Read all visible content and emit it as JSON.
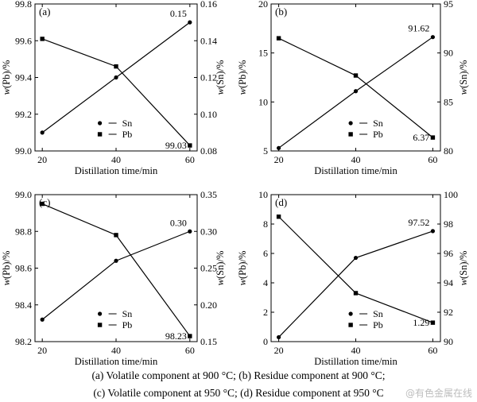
{
  "chart_data": [
    {
      "type": "line",
      "panel_label": "(a)",
      "x": [
        20,
        40,
        60
      ],
      "xticks": [
        "20",
        "40",
        "60"
      ],
      "xlabel": "Distillation time/min",
      "ylabel_left": "w(Pb)/%",
      "ylabel_right": "w(Sn)/%",
      "ylim_left": [
        99.0,
        99.8
      ],
      "yticks_left": [
        "99.0",
        "99.2",
        "99.4",
        "99.6",
        "99.8"
      ],
      "ylim_right": [
        0.08,
        0.16
      ],
      "yticks_right": [
        "0.08",
        "0.10",
        "0.12",
        "0.14",
        "0.16"
      ],
      "series": [
        {
          "name": "Sn",
          "axis": "right",
          "marker": "circle",
          "values": [
            0.09,
            0.12,
            0.15
          ]
        },
        {
          "name": "Pb",
          "axis": "left",
          "marker": "square",
          "values": [
            99.61,
            99.46,
            99.03
          ]
        }
      ],
      "annotations": [
        {
          "text": "0.15",
          "series": "Sn",
          "point": 2
        },
        {
          "text": "99.03",
          "series": "Pb",
          "point": 2
        }
      ],
      "legend": "bottom-left"
    },
    {
      "type": "line",
      "panel_label": "(b)",
      "x": [
        20,
        40,
        60
      ],
      "xticks": [
        "20",
        "40",
        "60"
      ],
      "xlabel": "Distillation time/min",
      "ylabel_left": "w(Pb)/%",
      "ylabel_right": "w(Sn)/%",
      "ylim_left": [
        5,
        20
      ],
      "yticks_left": [
        "5",
        "10",
        "15",
        "20"
      ],
      "ylim_right": [
        80,
        95
      ],
      "yticks_right": [
        "80",
        "85",
        "90",
        "95"
      ],
      "series": [
        {
          "name": "Sn",
          "axis": "right",
          "marker": "circle",
          "values": [
            80.3,
            86.1,
            91.62
          ]
        },
        {
          "name": "Pb",
          "axis": "left",
          "marker": "square",
          "values": [
            16.5,
            12.7,
            6.37
          ]
        }
      ],
      "annotations": [
        {
          "text": "91.62",
          "series": "Sn",
          "point": 2
        },
        {
          "text": "6.37",
          "series": "Pb",
          "point": 2
        }
      ],
      "legend": "bottom-right"
    },
    {
      "type": "line",
      "panel_label": "(c)",
      "x": [
        20,
        40,
        60
      ],
      "xticks": [
        "20",
        "40",
        "60"
      ],
      "xlabel": "Distillation time/min",
      "ylabel_left": "w(Pb)/%",
      "ylabel_right": "w(Sn)/%",
      "ylim_left": [
        98.2,
        99.0
      ],
      "yticks_left": [
        "98.2",
        "98.4",
        "98.6",
        "98.8",
        "99.0"
      ],
      "ylim_right": [
        0.15,
        0.35
      ],
      "yticks_right": [
        "0.15",
        "0.20",
        "0.25",
        "0.30",
        "0.35"
      ],
      "series": [
        {
          "name": "Sn",
          "axis": "right",
          "marker": "circle",
          "values": [
            0.18,
            0.26,
            0.3
          ]
        },
        {
          "name": "Pb",
          "axis": "left",
          "marker": "square",
          "values": [
            98.95,
            98.78,
            98.23
          ]
        }
      ],
      "annotations": [
        {
          "text": "0.30",
          "series": "Sn",
          "point": 2
        },
        {
          "text": "98.23",
          "series": "Pb",
          "point": 2
        }
      ],
      "legend": "bottom-left"
    },
    {
      "type": "line",
      "panel_label": "(d)",
      "x": [
        20,
        40,
        60
      ],
      "xticks": [
        "20",
        "40",
        "60"
      ],
      "xlabel": "Distillation time/min",
      "ylabel_left": "w(Pb)/%",
      "ylabel_right": "w(Sn)/%",
      "ylim_left": [
        0,
        10
      ],
      "yticks_left": [
        "0",
        "2",
        "4",
        "6",
        "8",
        "10"
      ],
      "ylim_right": [
        90,
        100
      ],
      "yticks_right": [
        "90",
        "92",
        "94",
        "96",
        "98",
        "100"
      ],
      "series": [
        {
          "name": "Sn",
          "axis": "right",
          "marker": "circle",
          "values": [
            90.3,
            95.7,
            97.52
          ]
        },
        {
          "name": "Pb",
          "axis": "left",
          "marker": "square",
          "values": [
            8.5,
            3.3,
            1.29
          ]
        }
      ],
      "annotations": [
        {
          "text": "97.52",
          "series": "Sn",
          "point": 2
        },
        {
          "text": "1.29",
          "series": "Pb",
          "point": 2
        }
      ],
      "legend": "bottom-right"
    }
  ],
  "caption": {
    "line1": "(a) Volatile component at 900 °C; (b) Residue component at 900 °C;",
    "line2": "(c) Volatile component at 950 °C; (d) Residue component at 950 °C"
  },
  "watermark": "@有色金属在线"
}
